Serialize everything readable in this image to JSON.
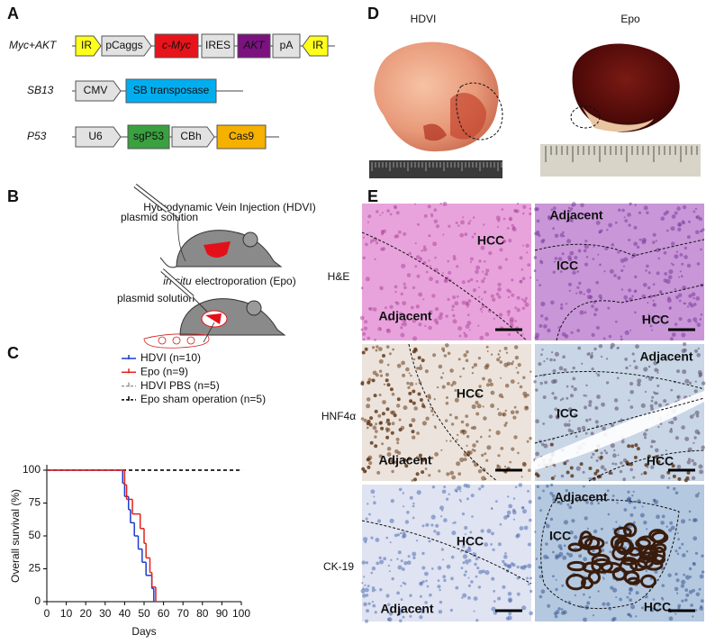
{
  "panel_labels": [
    "A",
    "B",
    "C",
    "D",
    "E"
  ],
  "constructs": [
    {
      "name": "Myc+AKT",
      "elements": [
        "IR",
        "pCaggs",
        "c-Myc",
        "IRES",
        "AKT",
        "pA",
        "IR"
      ]
    },
    {
      "name": "SB13",
      "elements": [
        "CMV",
        "SB transposase"
      ]
    },
    {
      "name": "P53",
      "elements": [
        "U6",
        "sgP53",
        "CBh",
        "Cas9"
      ]
    }
  ],
  "injection": {
    "hdvi_title": "Hydrodynamic Vein Injection (HDVI)",
    "hdvi_label": "plasmid solution",
    "epo_title_italic": "in situ",
    "epo_title": "electroporation (Epo)",
    "epo_label": "plasmid solution"
  },
  "chart_data": {
    "type": "step",
    "xlabel": "Days",
    "ylabel": "Overall survival (%)",
    "xlim": [
      0,
      100
    ],
    "xticks": [
      0,
      10,
      20,
      30,
      40,
      50,
      60,
      70,
      80,
      90,
      100
    ],
    "ylim": [
      0,
      100
    ],
    "yticks": [
      0,
      25,
      50,
      75,
      100
    ],
    "series": [
      {
        "name": "HDVI (n=10)",
        "color": "#1a3ccf",
        "dashed": false,
        "x": [
          0,
          39,
          40,
          42,
          43,
          45,
          47,
          49,
          51,
          54,
          55
        ],
        "values": [
          100,
          90,
          80,
          70,
          60,
          50,
          40,
          30,
          20,
          10,
          0
        ]
      },
      {
        "name": "Epo (n=9)",
        "color": "#e3201b",
        "dashed": false,
        "x": [
          0,
          40,
          41,
          44,
          48,
          50,
          51,
          53,
          54,
          56
        ],
        "values": [
          100,
          88.9,
          77.8,
          66.7,
          55.6,
          44.4,
          33.3,
          22.2,
          11.1,
          0
        ]
      },
      {
        "name": "HDVI PBS (n=5)",
        "color": "#9a9a9a",
        "dashed": true,
        "x": [
          0,
          100
        ],
        "values": [
          100,
          100
        ]
      },
      {
        "name": "Epo sham operation (n=5)",
        "color": "#000000",
        "dashed": true,
        "x": [
          0,
          100
        ],
        "values": [
          100,
          100
        ]
      }
    ]
  },
  "photos": {
    "titles": [
      "HDVI",
      "Epo"
    ]
  },
  "histology": {
    "row_labels": [
      "H&E",
      "HNF4α",
      "CK-19"
    ],
    "panels": [
      [
        [
          "HCC",
          "Adjacent"
        ],
        [
          "Adjacent",
          "ICC",
          "HCC"
        ]
      ],
      [
        [
          "HCC",
          "Adjacent"
        ],
        [
          "Adjacent",
          "ICC",
          "HCC"
        ]
      ],
      [
        [
          "HCC",
          "Adjacent"
        ],
        [
          "Adjacent",
          "ICC",
          "HCC"
        ]
      ]
    ]
  }
}
